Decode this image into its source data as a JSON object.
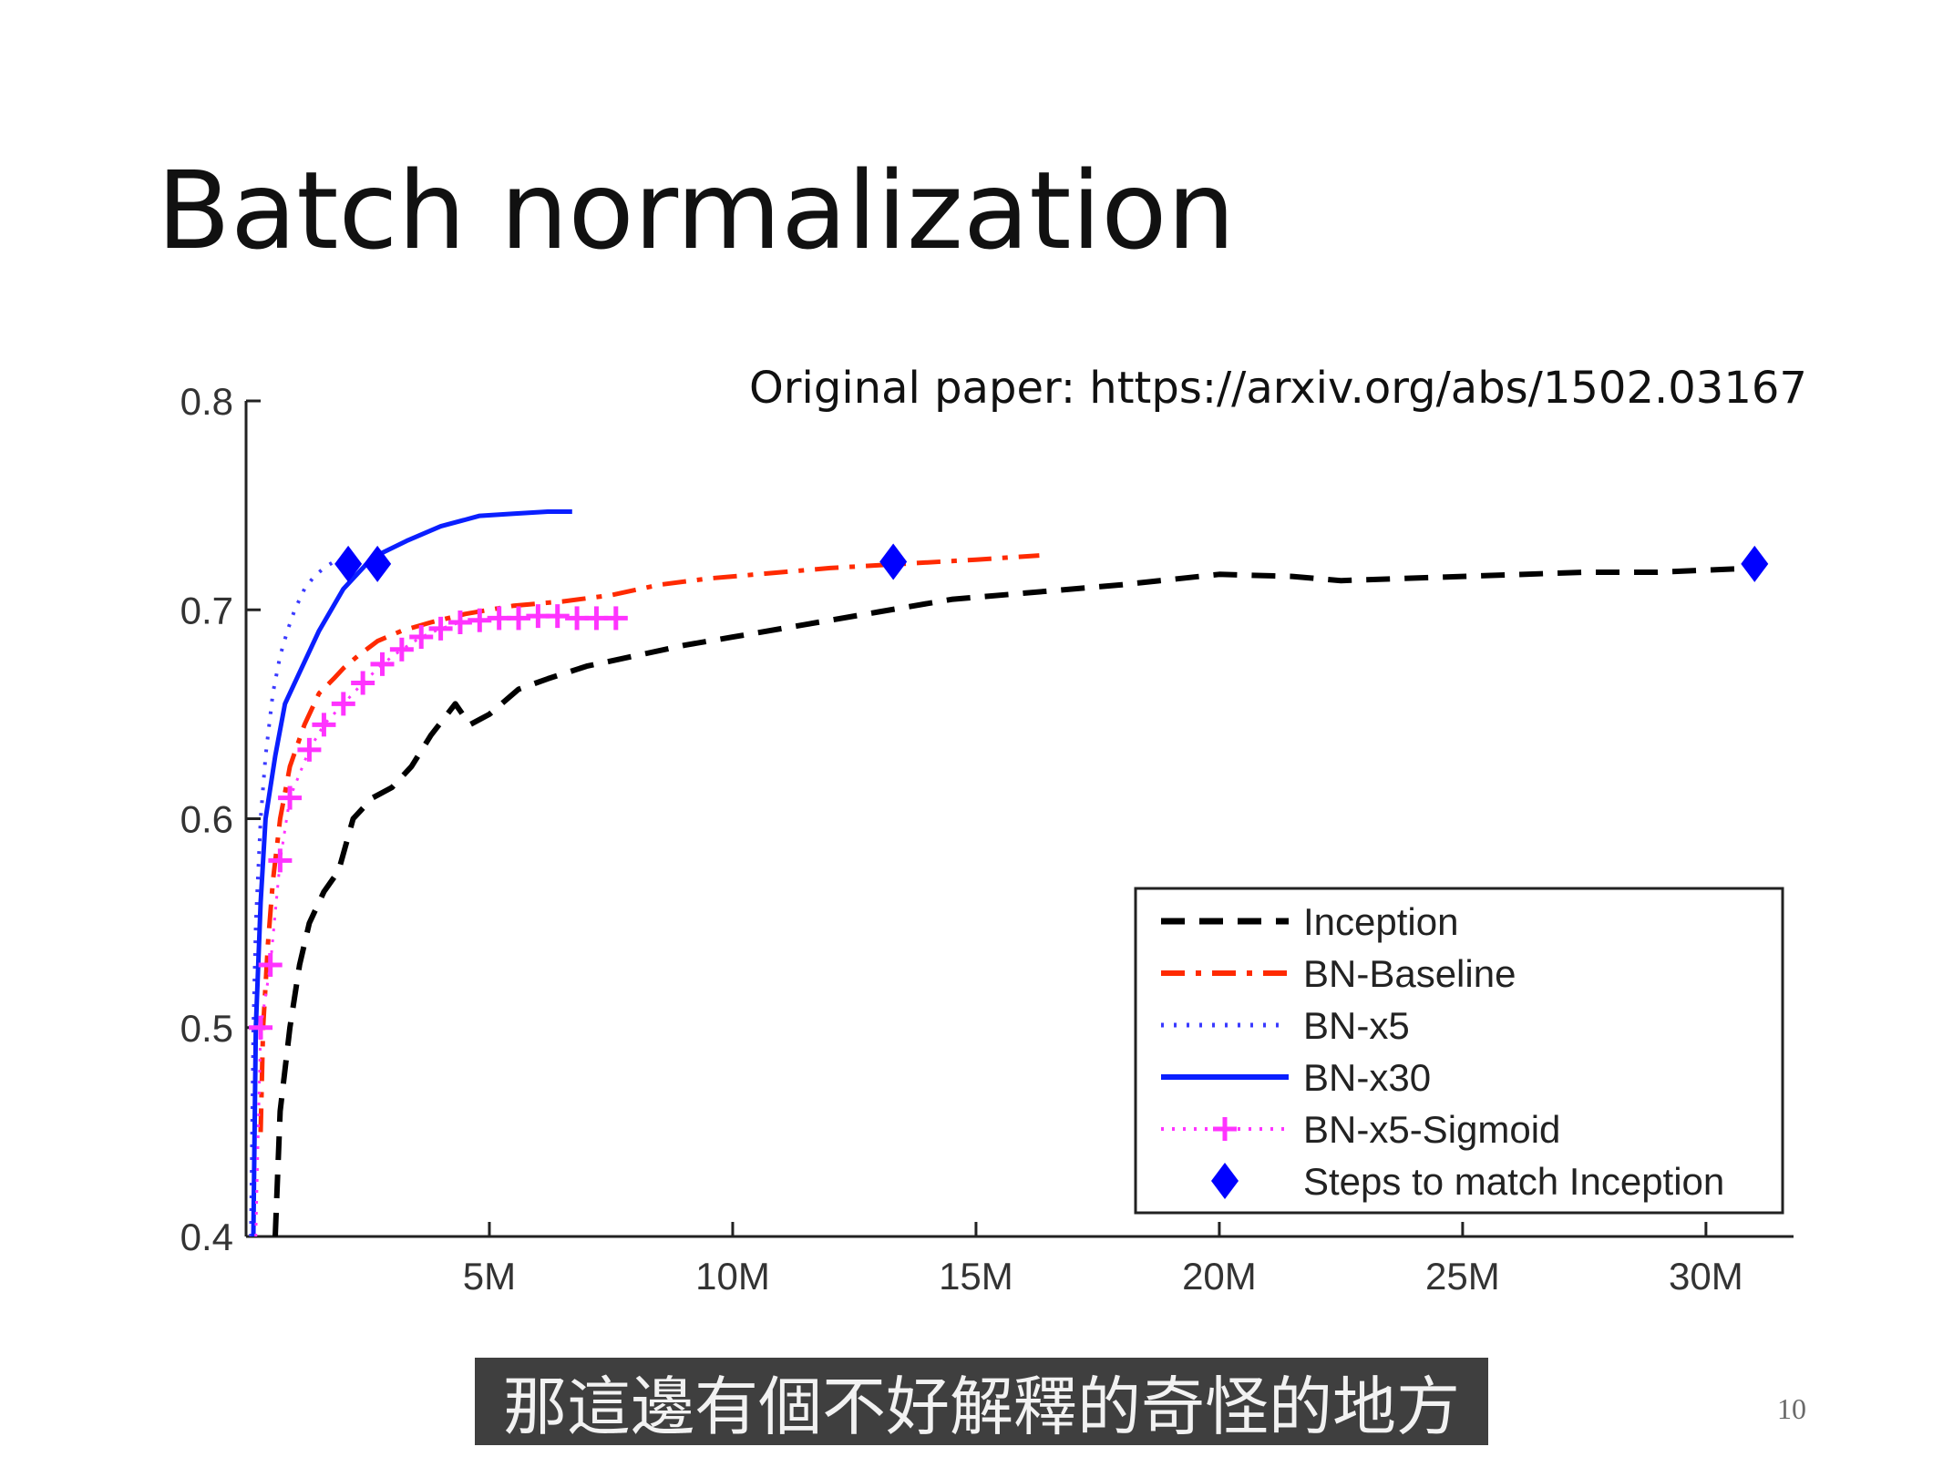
{
  "slide": {
    "title": "Batch normalization",
    "source_note": "Original paper: https://arxiv.org/abs/1502.03167",
    "subtitle": "那這邊有個不好解釋的奇怪的地方",
    "page_number": "10"
  },
  "chart_data": {
    "type": "line",
    "title": "",
    "xlabel": "",
    "ylabel": "",
    "xlim": [
      0,
      31800000
    ],
    "ylim": [
      0.4,
      0.8
    ],
    "x_ticks": [
      5000000,
      10000000,
      15000000,
      20000000,
      25000000,
      30000000
    ],
    "x_tick_labels": [
      "5M",
      "10M",
      "15M",
      "20M",
      "25M",
      "30M"
    ],
    "y_ticks": [
      0.4,
      0.5,
      0.6,
      0.7,
      0.8
    ],
    "y_tick_labels": [
      "0.4",
      "0.5",
      "0.6",
      "0.7",
      "0.8"
    ],
    "grid": false,
    "legend_position": "bottom-right",
    "series": [
      {
        "name": "Inception",
        "color": "#000000",
        "dash": "dashed",
        "x": [
          600000,
          700000,
          900000,
          1100000,
          1300000,
          1600000,
          1900000,
          2200000,
          2600000,
          3000000,
          3400000,
          3800000,
          4300000,
          4600000,
          5000000,
          5600000,
          6200000,
          7000000,
          8000000,
          9000000,
          10000000,
          11500000,
          13000000,
          14500000,
          16000000,
          18000000,
          20000000,
          21500000,
          22500000,
          25000000,
          27500000,
          29000000,
          30000000,
          31000000
        ],
        "y": [
          0.4,
          0.46,
          0.5,
          0.53,
          0.55,
          0.565,
          0.575,
          0.6,
          0.61,
          0.615,
          0.625,
          0.64,
          0.655,
          0.645,
          0.65,
          0.662,
          0.667,
          0.673,
          0.678,
          0.683,
          0.687,
          0.693,
          0.699,
          0.705,
          0.708,
          0.712,
          0.717,
          0.716,
          0.714,
          0.716,
          0.718,
          0.718,
          0.719,
          0.72
        ]
      },
      {
        "name": "BN-Baseline",
        "color": "#ff2a00",
        "dash": "dashdot",
        "x": [
          300000,
          350000,
          450000,
          550000,
          700000,
          900000,
          1200000,
          1500000,
          1800000,
          2000000,
          2300000,
          2700000,
          3200000,
          3800000,
          4500000,
          5500000,
          6500000,
          7500000,
          8500000,
          9500000,
          10500000,
          12000000,
          13500000,
          15000000,
          16300000
        ],
        "y": [
          0.45,
          0.5,
          0.54,
          0.57,
          0.6,
          0.625,
          0.645,
          0.66,
          0.667,
          0.672,
          0.678,
          0.685,
          0.69,
          0.694,
          0.698,
          0.702,
          0.704,
          0.707,
          0.712,
          0.715,
          0.717,
          0.72,
          0.722,
          0.724,
          0.726
        ]
      },
      {
        "name": "BN-x5",
        "color": "#3a3aff",
        "dash": "dotted",
        "x": [
          100000,
          150000,
          200000,
          300000,
          400000,
          550000,
          700000,
          850000,
          1000000,
          1200000,
          1400000,
          1600000,
          1800000,
          2000000,
          2200000
        ],
        "y": [
          0.4,
          0.5,
          0.55,
          0.6,
          0.63,
          0.66,
          0.678,
          0.69,
          0.7,
          0.71,
          0.716,
          0.72,
          0.723,
          0.725,
          0.726
        ]
      },
      {
        "name": "BN-x30",
        "color": "#0a1fff",
        "dash": "solid",
        "x": [
          150000,
          200000,
          300000,
          400000,
          600000,
          800000,
          1100000,
          1500000,
          2000000,
          2600000,
          3300000,
          4000000,
          4800000,
          5500000,
          6200000,
          6700000
        ],
        "y": [
          0.4,
          0.5,
          0.56,
          0.6,
          0.63,
          0.655,
          0.67,
          0.69,
          0.71,
          0.725,
          0.733,
          0.74,
          0.745,
          0.746,
          0.747,
          0.747
        ]
      },
      {
        "name": "BN-x5-Sigmoid",
        "color": "#ff33ff",
        "dash": "dotted-plus",
        "x": [
          200000,
          300000,
          500000,
          700000,
          900000,
          1300000,
          1600000,
          2000000,
          2400000,
          2800000,
          3200000,
          3600000,
          4000000,
          4400000,
          4800000,
          5200000,
          5600000,
          6000000,
          6400000,
          6800000,
          7200000,
          7600000
        ],
        "y": [
          0.4,
          0.5,
          0.53,
          0.58,
          0.61,
          0.633,
          0.645,
          0.655,
          0.665,
          0.674,
          0.681,
          0.687,
          0.691,
          0.694,
          0.695,
          0.696,
          0.696,
          0.697,
          0.697,
          0.696,
          0.696,
          0.696
        ]
      }
    ],
    "markers": {
      "name": "Steps to match Inception",
      "color": "#0000ff",
      "shape": "diamond",
      "points": [
        {
          "x": 2100000,
          "y": 0.722
        },
        {
          "x": 2700000,
          "y": 0.722
        },
        {
          "x": 13300000,
          "y": 0.723
        },
        {
          "x": 31000000,
          "y": 0.722
        }
      ]
    }
  }
}
